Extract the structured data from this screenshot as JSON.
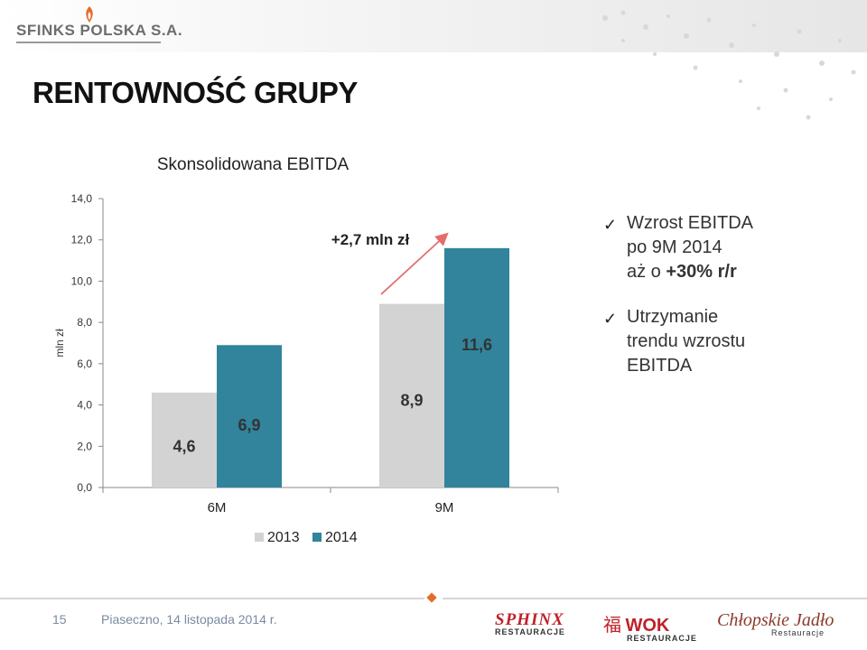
{
  "header": {
    "company": "SFINKS POLSKA S.A.",
    "slide_title": "RENTOWNOŚĆ GRUPY"
  },
  "chart_data": {
    "type": "bar",
    "title": "Skonsolidowana EBITDA",
    "ylabel": "mln zł",
    "xlabel": "",
    "categories": [
      "6M",
      "9M"
    ],
    "series": [
      {
        "name": "2013",
        "values": [
          4.6,
          8.9
        ],
        "labels": [
          "4,6",
          "8,9"
        ],
        "color": "#d3d3d3"
      },
      {
        "name": "2014",
        "values": [
          6.9,
          11.6
        ],
        "labels": [
          "6,9",
          "11,6"
        ],
        "color": "#31849b"
      }
    ],
    "ylim": [
      0,
      14
    ],
    "yticks": [
      "0,0",
      "2,0",
      "4,0",
      "6,0",
      "8,0",
      "10,0",
      "12,0",
      "14,0"
    ],
    "grid": false,
    "legend_position": "bottom",
    "annotation": "+2,7 mln zł"
  },
  "bullets": [
    {
      "lines": [
        "Wzrost EBITDA",
        "po 9M 2014"
      ],
      "prefix": "aż o ",
      "bold": "+30% r/r"
    },
    {
      "lines": [
        "Utrzymanie",
        "trendu wzrostu",
        "EBITDA"
      ]
    }
  ],
  "footer": {
    "page_number": "15",
    "location_date": "Piaseczno, 14 listopada 2014 r.",
    "brands": [
      {
        "name": "SPHINX",
        "sub": "RESTAURACJE"
      },
      {
        "name": "WOK",
        "sub": "RESTAURACJE",
        "glyph": "福"
      },
      {
        "name": "Chłopskie Jadło",
        "sub": "Restauracje"
      }
    ]
  },
  "colors": {
    "accent_teal": "#31849b",
    "bar_grey": "#d3d3d3",
    "arrow": "#e46c6c",
    "footer_text": "#7a8aa0"
  }
}
